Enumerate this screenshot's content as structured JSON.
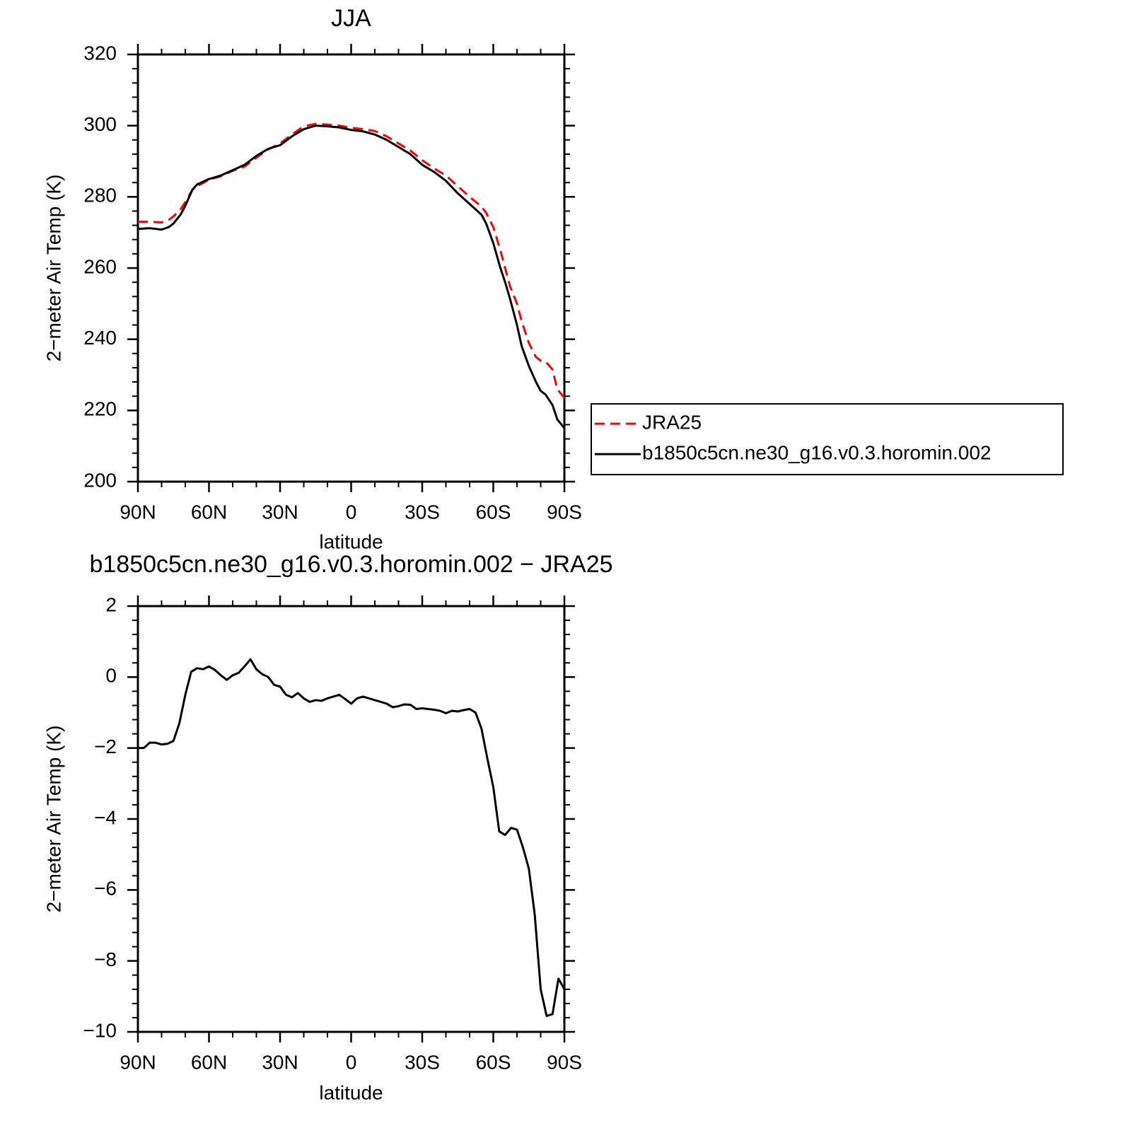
{
  "chart_data": [
    {
      "type": "line",
      "title": "JJA",
      "xlabel": "latitude",
      "ylabel": "2−meter Air Temp (K)",
      "x": [
        90,
        85,
        80,
        77,
        75,
        72,
        70,
        67,
        65,
        60,
        55,
        50,
        45,
        40,
        35,
        30,
        25,
        20,
        15,
        10,
        5,
        0,
        -5,
        -10,
        -15,
        -20,
        -25,
        -30,
        -35,
        -40,
        -45,
        -50,
        -55,
        -57,
        -60,
        -63,
        -65,
        -67,
        -70,
        -72,
        -75,
        -78,
        -80,
        -82,
        -85,
        -87,
        -90
      ],
      "series": [
        {
          "name": "JRA25",
          "color": "#ff0000",
          "style": "dashed",
          "values": [
            273,
            273,
            272.8,
            273.5,
            274.5,
            276.5,
            278.5,
            282,
            283,
            284.8,
            285.8,
            287.3,
            288.5,
            291,
            293.3,
            295,
            297.5,
            299.8,
            300.5,
            300.3,
            300,
            299.4,
            299,
            298.5,
            297,
            295,
            293,
            290.3,
            288,
            286,
            283,
            280,
            277.3,
            275.5,
            271.5,
            265,
            260,
            255,
            250,
            245,
            239,
            235,
            234,
            233.8,
            231.5,
            226,
            223.5
          ]
        },
        {
          "name": "b1850c5cn.ne30_g16.v0.3.horomin.002",
          "color": "#000000",
          "style": "solid",
          "values": [
            271,
            271.2,
            270.8,
            271.5,
            272.5,
            275,
            277.5,
            282,
            283.5,
            285,
            286,
            287.5,
            289,
            291.5,
            293.5,
            294.5,
            297,
            299,
            300,
            299.8,
            299.5,
            298.8,
            298.4,
            297.5,
            296,
            294,
            292,
            289,
            287,
            284.5,
            281,
            278,
            275,
            272.5,
            267,
            260,
            256,
            251.5,
            244,
            238,
            232.5,
            228,
            225.5,
            224.5,
            221.5,
            217.5,
            215
          ]
        }
      ],
      "xlim": [
        90,
        -90
      ],
      "xticks": [
        {
          "value": 90,
          "label": "90N"
        },
        {
          "value": 60,
          "label": "60N"
        },
        {
          "value": 30,
          "label": "30N"
        },
        0,
        {
          "value": -30,
          "label": "30S"
        },
        {
          "value": -60,
          "label": "60S"
        },
        {
          "value": -90,
          "label": "90S"
        }
      ],
      "ylim": [
        200,
        320
      ],
      "yticks": [
        200,
        220,
        240,
        260,
        280,
        300,
        320
      ],
      "legend": "right"
    },
    {
      "type": "line",
      "title": "b1850c5cn.ne30_g16.v0.3.horomin.002 − JRA25",
      "xlabel": "latitude",
      "ylabel": "2−meter Air Temp (K)",
      "x": [
        90,
        87.5,
        85,
        82.5,
        80,
        77.5,
        75,
        72.5,
        70,
        67.5,
        65,
        62.5,
        60,
        57.5,
        55,
        52.5,
        50,
        47.5,
        45,
        42.5,
        40,
        37.5,
        35,
        32.5,
        30,
        27.5,
        25,
        22.5,
        20,
        17.5,
        15,
        12.5,
        10,
        7.5,
        5,
        2.5,
        0,
        -2.5,
        -5,
        -7.5,
        -10,
        -12.5,
        -15,
        -17.5,
        -20,
        -22.5,
        -25,
        -27.5,
        -30,
        -32.5,
        -35,
        -37.5,
        -40,
        -42.5,
        -45,
        -47.5,
        -50,
        -52.5,
        -55,
        -57.5,
        -60,
        -62.5,
        -65,
        -67.5,
        -70,
        -72.5,
        -75,
        -77.5,
        -80,
        -82.5,
        -85,
        -87.5,
        -90
      ],
      "values": [
        -2.0,
        -2.0,
        -1.85,
        -1.85,
        -1.9,
        -1.88,
        -1.8,
        -1.3,
        -0.5,
        0.15,
        0.25,
        0.22,
        0.3,
        0.2,
        0.05,
        -0.08,
        0.05,
        0.12,
        0.3,
        0.5,
        0.22,
        0.08,
        0.0,
        -0.22,
        -0.27,
        -0.5,
        -0.57,
        -0.45,
        -0.6,
        -0.7,
        -0.65,
        -0.67,
        -0.6,
        -0.55,
        -0.5,
        -0.62,
        -0.75,
        -0.6,
        -0.55,
        -0.6,
        -0.65,
        -0.7,
        -0.75,
        -0.85,
        -0.82,
        -0.77,
        -0.78,
        -0.9,
        -0.88,
        -0.9,
        -0.92,
        -0.95,
        -1.02,
        -0.95,
        -0.97,
        -0.93,
        -0.9,
        -1.0,
        -1.45,
        -2.3,
        -3.1,
        -4.35,
        -4.45,
        -4.25,
        -4.3,
        -4.8,
        -5.4,
        -6.7,
        -8.8,
        -9.55,
        -9.5,
        -8.5,
        -8.8
      ],
      "color": "#000000",
      "xlim": [
        90,
        -90
      ],
      "xticks": [
        {
          "value": 90,
          "label": "90N"
        },
        {
          "value": 60,
          "label": "60N"
        },
        {
          "value": 30,
          "label": "30N"
        },
        0,
        {
          "value": -30,
          "label": "30S"
        },
        {
          "value": -60,
          "label": "60S"
        },
        {
          "value": -90,
          "label": "90S"
        }
      ],
      "ylim": [
        -10,
        2
      ],
      "yticks": [
        {
          "value": -10,
          "label": "−10"
        },
        {
          "value": -8,
          "label": "−8"
        },
        {
          "value": -6,
          "label": "−6"
        },
        {
          "value": -4,
          "label": "−4"
        },
        {
          "value": -2,
          "label": "−2"
        },
        0,
        2
      ]
    }
  ]
}
